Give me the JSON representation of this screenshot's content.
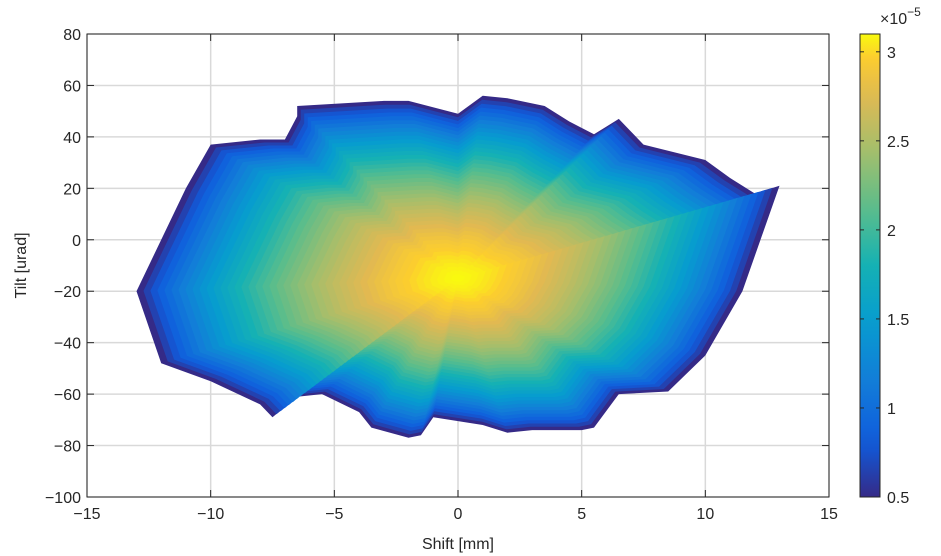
{
  "chart_data": {
    "type": "heatmap",
    "title": "",
    "xlabel": "Shift [mm]",
    "ylabel": "Tilt [urad]",
    "xlim": [
      -15,
      15
    ],
    "ylim": [
      -100,
      80
    ],
    "x_ticks": [
      -15,
      -10,
      -5,
      0,
      5,
      10,
      15
    ],
    "x_tick_labels": [
      "−15",
      "−10",
      "−5",
      "0",
      "5",
      "10",
      "15"
    ],
    "y_ticks": [
      -100,
      -80,
      -60,
      -40,
      -20,
      0,
      20,
      40,
      60,
      80
    ],
    "y_tick_labels": [
      "−100",
      "−80",
      "−60",
      "−40",
      "−20",
      "0",
      "20",
      "40",
      "60",
      "80"
    ],
    "grid": true,
    "colormap": "parula",
    "colorbar": {
      "range": [
        0.5,
        3.1
      ],
      "exponent_label": "×10",
      "exponent": "−5",
      "ticks": [
        0.5,
        1,
        1.5,
        2,
        2.5,
        3
      ],
      "tick_labels": [
        "0.5",
        "1",
        "1.5",
        "2",
        "2.5",
        "3"
      ]
    },
    "surface": {
      "peak": {
        "x": 0,
        "y": -15,
        "value": 3.1
      },
      "edge_value": 0.5,
      "boundary_upper": [
        [
          -13,
          -20
        ],
        [
          -11,
          20
        ],
        [
          -10,
          37
        ],
        [
          -8,
          39
        ],
        [
          -7,
          39
        ],
        [
          -6.5,
          48
        ],
        [
          -6.5,
          52
        ],
        [
          -3,
          54
        ],
        [
          -2,
          54
        ],
        [
          0,
          49
        ],
        [
          1,
          56
        ],
        [
          2,
          55
        ],
        [
          3.5,
          52
        ],
        [
          4.5,
          46
        ],
        [
          5.5,
          41
        ],
        [
          6.5,
          47
        ],
        [
          7.5,
          37
        ],
        [
          10,
          31
        ],
        [
          11,
          24
        ],
        [
          12,
          18
        ],
        [
          13,
          21
        ]
      ],
      "boundary_lower": [
        [
          -13,
          -42
        ],
        [
          -12,
          -48
        ],
        [
          -10,
          -55
        ],
        [
          -8,
          -64
        ],
        [
          -7.5,
          -69
        ],
        [
          -6.5,
          -61
        ],
        [
          -5.5,
          -60
        ],
        [
          -4,
          -67
        ],
        [
          -3.5,
          -73
        ],
        [
          -2,
          -77
        ],
        [
          -1.5,
          -76
        ],
        [
          -1,
          -69
        ],
        [
          1,
          -72
        ],
        [
          2,
          -75
        ],
        [
          3,
          -74
        ],
        [
          5,
          -74
        ],
        [
          5.5,
          -73
        ],
        [
          6.5,
          -60
        ],
        [
          8.5,
          -59
        ],
        [
          10,
          -45
        ],
        [
          11.5,
          -20
        ],
        [
          13,
          21
        ]
      ]
    }
  }
}
